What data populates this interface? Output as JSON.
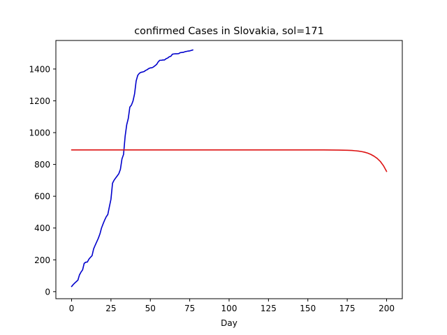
{
  "chart_data": {
    "type": "line",
    "title": "confirmed Cases in Slovakia, sol=171",
    "xlabel": "Day",
    "ylabel": "",
    "xlim": [
      -9.97,
      209.97
    ],
    "ylim": [
      -44.5,
      1579.5
    ],
    "xticks": [
      0,
      25,
      50,
      75,
      100,
      125,
      150,
      175,
      200
    ],
    "yticks": [
      0,
      200,
      400,
      600,
      800,
      1000,
      1200,
      1400
    ],
    "grid": false,
    "legend": "none",
    "series": [
      {
        "color": "#0000cc",
        "x": [
          0,
          1,
          2,
          3,
          4,
          5,
          6,
          7,
          8,
          9,
          10,
          11,
          12,
          13,
          14,
          15,
          16,
          17,
          18,
          19,
          20,
          21,
          22,
          23,
          24,
          25,
          26,
          27,
          28,
          29,
          30,
          31,
          32,
          33,
          34,
          35,
          36,
          37,
          38,
          39,
          40,
          41,
          42,
          43,
          44,
          45,
          46,
          47,
          48,
          49,
          50,
          51,
          52,
          53,
          54,
          55,
          56,
          57,
          58,
          59,
          60,
          61,
          62,
          63,
          64,
          65,
          66,
          67,
          68,
          69,
          70,
          71,
          72,
          73,
          74,
          75,
          76,
          77
        ],
        "values": [
          32,
          44,
          54,
          63,
          72,
          105,
          123,
          137,
          178,
          185,
          186,
          204,
          216,
          226,
          269,
          292,
          314,
          336,
          363,
          400,
          426,
          450,
          471,
          485,
          534,
          581,
          682,
          701,
          715,
          728,
          742,
          769,
          835,
          863,
          977,
          1049,
          1089,
          1161,
          1173,
          1199,
          1244,
          1325,
          1360,
          1373,
          1379,
          1381,
          1384,
          1391,
          1396,
          1403,
          1407,
          1408,
          1413,
          1421,
          1429,
          1445,
          1455,
          1455,
          1457,
          1457,
          1465,
          1469,
          1477,
          1480,
          1493,
          1495,
          1496,
          1496,
          1497,
          1503,
          1504,
          1505,
          1509,
          1511,
          1513,
          1514,
          1517,
          1520
        ]
      },
      {
        "color": "#dd1111",
        "x": [
          0,
          20,
          40,
          60,
          80,
          100,
          120,
          140,
          160,
          170,
          175,
          178,
          180,
          182,
          184,
          186,
          188,
          190,
          192,
          194,
          196,
          198,
          200
        ],
        "values": [
          891,
          891,
          891,
          891,
          891,
          891,
          891,
          891,
          891,
          890,
          889,
          888,
          886,
          884,
          881,
          877,
          871,
          863,
          852,
          838,
          819,
          792,
          756
        ]
      }
    ]
  }
}
